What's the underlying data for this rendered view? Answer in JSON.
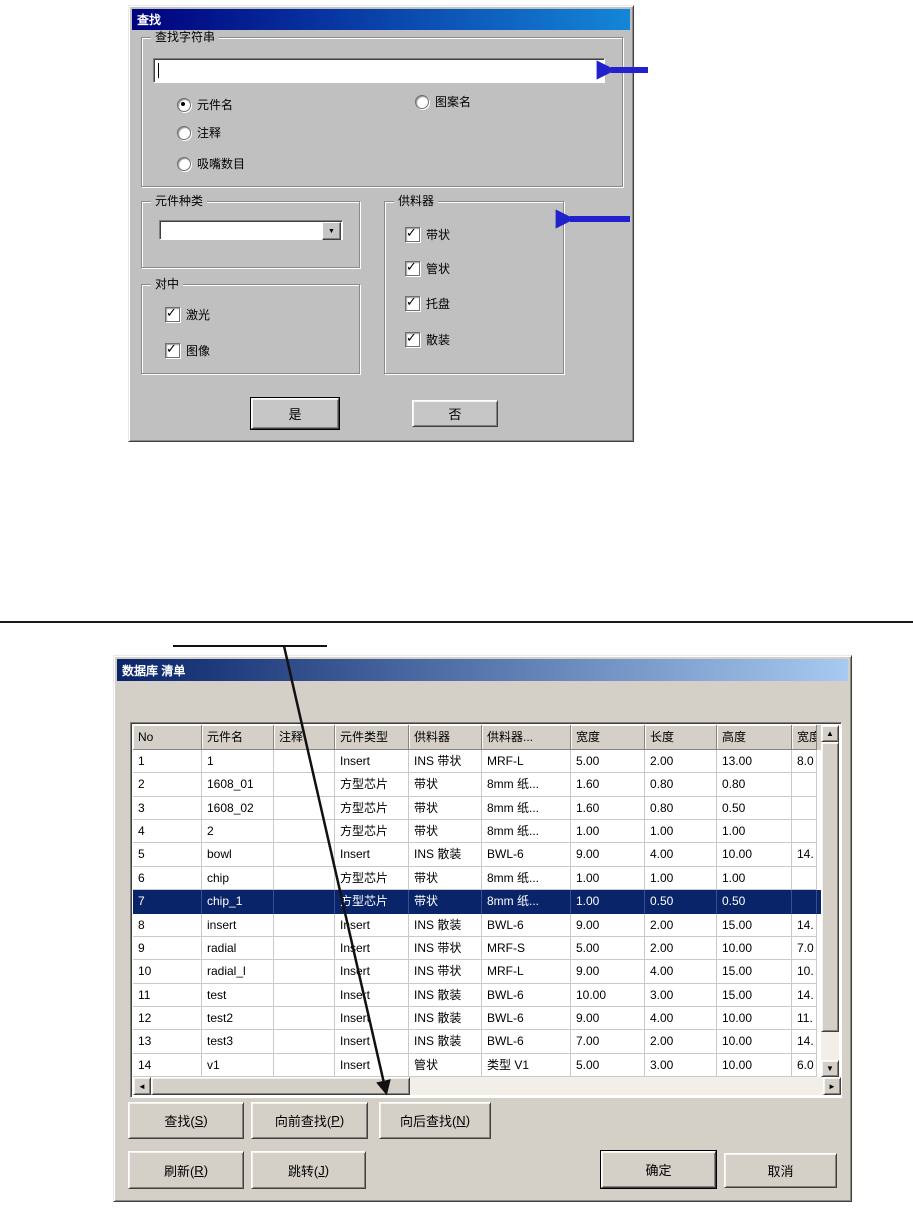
{
  "colors": {
    "find_titlebar_start": "#00007d",
    "find_titlebar_end": "#1486d8",
    "db_titlebar_start": "#0a246a",
    "db_titlebar_end": "#a6caf0",
    "selection": "#0a246a",
    "annotation_blue": "#2222cc",
    "annotation_black": "#111111"
  },
  "icons": {
    "checkmark": "✓",
    "dropdown_arrow": "▼",
    "scroll_up": "▲",
    "scroll_down": "▼",
    "scroll_left": "◄",
    "scroll_right": "►"
  },
  "find_dialog": {
    "title": "查找",
    "search_group": {
      "label": "查找字符串",
      "input_value": "",
      "radios": [
        {
          "label": "元件名",
          "checked": true
        },
        {
          "label": "图案名",
          "checked": false
        },
        {
          "label": "注释",
          "checked": false
        },
        {
          "label": "吸嘴数目",
          "checked": false
        }
      ]
    },
    "component_type_group": {
      "label": "元件种类",
      "combo_value": ""
    },
    "feeder_group": {
      "label": "供料器",
      "checkboxes": [
        {
          "label": "带状",
          "checked": true
        },
        {
          "label": "管状",
          "checked": true
        },
        {
          "label": "托盘",
          "checked": true
        },
        {
          "label": "散装",
          "checked": true
        }
      ]
    },
    "centering_group": {
      "label": "对中",
      "checkboxes": [
        {
          "label": "激光",
          "checked": true
        },
        {
          "label": "图像",
          "checked": true
        }
      ]
    },
    "yes_button": "是",
    "no_button": "否"
  },
  "database_dialog": {
    "title": "数据库 清单",
    "table": {
      "columns": [
        "No",
        "元件名",
        "注释",
        "元件类型",
        "供料器",
        "供料器...",
        "宽度",
        "长度",
        "高度",
        "宽度"
      ],
      "selected_row_no": 7,
      "rows": [
        [
          "1",
          "1",
          "",
          "Insert",
          "INS 带状",
          "MRF-L",
          "5.00",
          "2.00",
          "13.00",
          "8.0"
        ],
        [
          "2",
          "1608_01",
          "",
          "方型芯片",
          "带状",
          "8mm 纸...",
          "1.60",
          "0.80",
          "0.80",
          ""
        ],
        [
          "3",
          "1608_02",
          "",
          "方型芯片",
          "带状",
          "8mm 纸...",
          "1.60",
          "0.80",
          "0.50",
          ""
        ],
        [
          "4",
          "2",
          "",
          "方型芯片",
          "带状",
          "8mm 纸...",
          "1.00",
          "1.00",
          "1.00",
          ""
        ],
        [
          "5",
          "bowl",
          "",
          "Insert",
          "INS 散装",
          "BWL-6",
          "9.00",
          "4.00",
          "10.00",
          "14."
        ],
        [
          "6",
          "chip",
          "",
          "方型芯片",
          "带状",
          "8mm 纸...",
          "1.00",
          "1.00",
          "1.00",
          ""
        ],
        [
          "7",
          "chip_1",
          "",
          "方型芯片",
          "带状",
          "8mm 纸...",
          "1.00",
          "0.50",
          "0.50",
          ""
        ],
        [
          "8",
          "insert",
          "",
          "Insert",
          "INS 散装",
          "BWL-6",
          "9.00",
          "2.00",
          "15.00",
          "14."
        ],
        [
          "9",
          "radial",
          "",
          "Insert",
          "INS 带状",
          "MRF-S",
          "5.00",
          "2.00",
          "10.00",
          "7.0"
        ],
        [
          "10",
          "radial_l",
          "",
          "Insert",
          "INS 带状",
          "MRF-L",
          "9.00",
          "4.00",
          "15.00",
          "10."
        ],
        [
          "11",
          "test",
          "",
          "Insert",
          "INS 散装",
          "BWL-6",
          "10.00",
          "3.00",
          "15.00",
          "14."
        ],
        [
          "12",
          "test2",
          "",
          "Insert",
          "INS 散装",
          "BWL-6",
          "9.00",
          "4.00",
          "10.00",
          "11."
        ],
        [
          "13",
          "test3",
          "",
          "Insert",
          "INS 散装",
          "BWL-6",
          "7.00",
          "2.00",
          "10.00",
          "14."
        ],
        [
          "14",
          "v1",
          "",
          "Insert",
          "管状",
          "类型 V1",
          "5.00",
          "3.00",
          "10.00",
          "6.0"
        ]
      ]
    },
    "buttons": {
      "search": {
        "pre": "查找(",
        "mn": "S",
        "post": ")"
      },
      "prev": {
        "pre": "向前查找(",
        "mn": "P",
        "post": ")"
      },
      "next": {
        "pre": "向后查找(",
        "mn": "N",
        "post": ")"
      },
      "refresh": {
        "pre": "刷新(",
        "mn": "R",
        "post": ")"
      },
      "jump": {
        "pre": "跳转(",
        "mn": "J",
        "post": ")"
      },
      "ok": "确定",
      "cancel": "取消"
    }
  }
}
